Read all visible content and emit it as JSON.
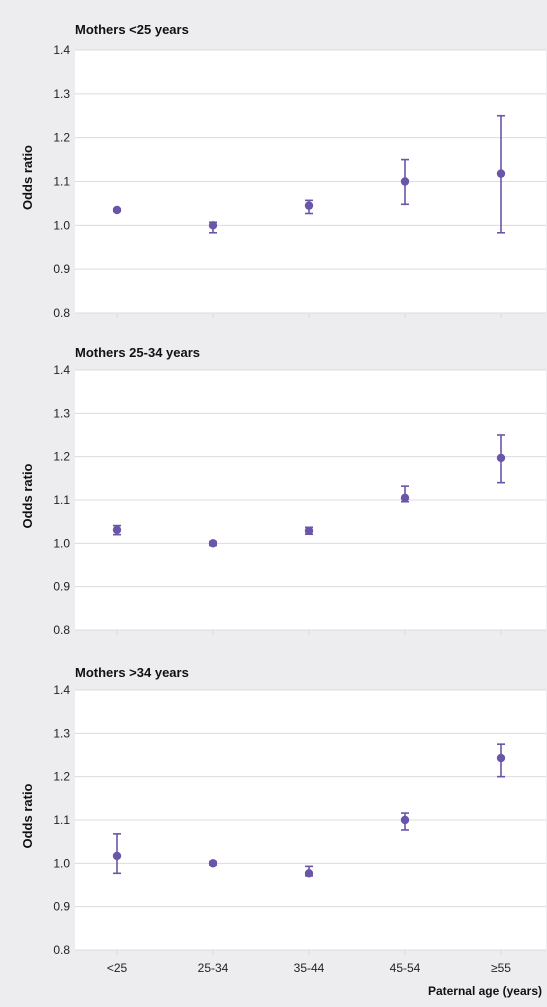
{
  "colors": {
    "background": "#ededf0",
    "plot_area": "#ffffff",
    "grid": "#dcdce0",
    "marker": "#6a55a8"
  },
  "chart_data": [
    {
      "type": "scatter",
      "title": "Mothers <25 years",
      "ylabel": "Odds ratio",
      "xlabel": "",
      "categories": [
        "<25",
        "25-34",
        "35-44",
        "45-54",
        "≥55"
      ],
      "values": [
        1.035,
        1.0,
        1.045,
        1.1,
        1.118
      ],
      "ci_lower": [
        1.032,
        0.983,
        1.027,
        1.048,
        0.983
      ],
      "ci_upper": [
        1.038,
        1.007,
        1.057,
        1.15,
        1.25
      ],
      "ylim": [
        0.8,
        1.4
      ],
      "yticks": [
        "0.8",
        "0.9",
        "1.0",
        "1.1",
        "1.2",
        "1.3",
        "1.4"
      ],
      "grid": true,
      "show_category_labels": false
    },
    {
      "type": "scatter",
      "title": "Mothers 25-34 years",
      "ylabel": "Odds ratio",
      "xlabel": "",
      "categories": [
        "<25",
        "25-34",
        "35-44",
        "45-54",
        "≥55"
      ],
      "values": [
        1.031,
        1.0,
        1.029,
        1.105,
        1.197
      ],
      "ci_lower": [
        1.02,
        0.995,
        1.021,
        1.096,
        1.14
      ],
      "ci_upper": [
        1.041,
        1.004,
        1.037,
        1.132,
        1.25
      ],
      "ylim": [
        0.8,
        1.4
      ],
      "yticks": [
        "0.8",
        "0.9",
        "1.0",
        "1.1",
        "1.2",
        "1.3",
        "1.4"
      ],
      "grid": true,
      "show_category_labels": false
    },
    {
      "type": "scatter",
      "title": "Mothers >34 years",
      "ylabel": "Odds ratio",
      "xlabel": "Paternal age (years)",
      "categories": [
        "<25",
        "25-34",
        "35-44",
        "45-54",
        "≥55"
      ],
      "values": [
        1.017,
        1.0,
        0.977,
        1.1,
        1.243
      ],
      "ci_lower": [
        0.977,
        0.996,
        0.971,
        1.077,
        1.2
      ],
      "ci_upper": [
        1.068,
        1.004,
        0.993,
        1.116,
        1.275
      ],
      "ylim": [
        0.8,
        1.4
      ],
      "yticks": [
        "0.8",
        "0.9",
        "1.0",
        "1.1",
        "1.2",
        "1.3",
        "1.4"
      ],
      "grid": true,
      "show_category_labels": true
    }
  ]
}
